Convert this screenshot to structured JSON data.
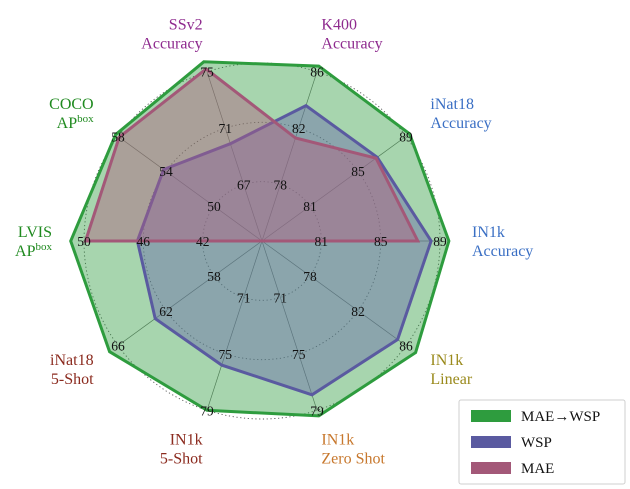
{
  "chart_data": {
    "type": "radar",
    "title": "",
    "axes": [
      {
        "line1": "IN1k",
        "line2": "Accuracy",
        "sup": "",
        "color": "#3a6fc4",
        "ticks": [
          "81",
          "85",
          "89"
        ],
        "min": 77,
        "max": 89
      },
      {
        "line1": "IN1k",
        "line2": "Linear",
        "sup": "",
        "color": "#9a8a1c",
        "ticks": [
          "78",
          "82",
          "86"
        ],
        "min": 74,
        "max": 86
      },
      {
        "line1": "IN1k",
        "line2": "Zero Shot",
        "sup": "",
        "color": "#c7772c",
        "ticks": [
          "71",
          "75",
          "79"
        ],
        "min": 67,
        "max": 79
      },
      {
        "line1": "IN1k",
        "line2": "5-Shot",
        "sup": "",
        "color": "#8b2a1e",
        "ticks": [
          "71",
          "75",
          "79"
        ],
        "min": 67,
        "max": 79
      },
      {
        "line1": "iNat18",
        "line2": "5-Shot",
        "sup": "",
        "color": "#8b2a1e",
        "ticks": [
          "58",
          "62",
          "66"
        ],
        "min": 54,
        "max": 66
      },
      {
        "line1": "LVIS",
        "line2": "AP",
        "sup": "box",
        "color": "#1f8a1f",
        "ticks": [
          "42",
          "46",
          "50"
        ],
        "min": 38,
        "max": 50
      },
      {
        "line1": "COCO",
        "line2": "AP",
        "sup": "box",
        "color": "#1f8a1f",
        "ticks": [
          "50",
          "54",
          "58"
        ],
        "min": 46,
        "max": 58
      },
      {
        "line1": "SSv2",
        "line2": "Accuracy",
        "sup": "",
        "color": "#8e2a8e",
        "ticks": [
          "67",
          "71",
          "75"
        ],
        "min": 63,
        "max": 75
      },
      {
        "line1": "K400",
        "line2": "Accuracy",
        "sup": "",
        "color": "#8e2a8e",
        "ticks": [
          "78",
          "82",
          "86"
        ],
        "min": 74,
        "max": 86
      },
      {
        "line1": "iNat18",
        "line2": "Accuracy",
        "sup": "",
        "color": "#3a6fc4",
        "ticks": [
          "81",
          "85",
          "89"
        ],
        "min": 77,
        "max": 89
      }
    ],
    "series": [
      {
        "name": "MAE→WSP",
        "color": "#2e9c3e",
        "fill": "#2e9c3e",
        "fill_opacity": 0.42,
        "values": [
          89.6,
          86.8,
          79.4,
          79.0,
          66.7,
          50.9,
          58.2,
          75.7,
          86.4,
          89.3
        ]
      },
      {
        "name": "WSP",
        "color": "#5a5aa0",
        "fill": "#6a6aaa",
        "fill_opacity": 0.45,
        "values": [
          88.4,
          85.3,
          77.9,
          75.8,
          62.9,
          46.4,
          54.2,
          69.9,
          83.6,
          86.6
        ]
      },
      {
        "name": "MAE",
        "color": "#a35878",
        "fill": "#b06080",
        "fill_opacity": 0.45,
        "values": [
          87.5,
          74.0,
          67.0,
          67.0,
          54.0,
          49.9,
          57.9,
          75.2,
          81.3,
          86.5
        ]
      }
    ],
    "legend": {
      "position": "bottom-right"
    }
  }
}
